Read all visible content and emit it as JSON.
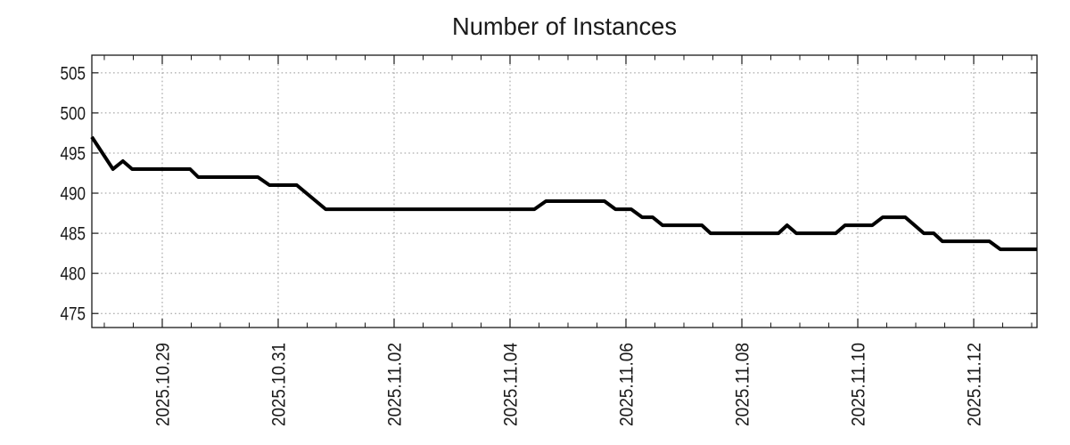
{
  "chart_data": {
    "type": "line",
    "title": "Number of Instances",
    "x_axis": {
      "unit": "days since 2025-10-29 00:00",
      "lim": [
        -1.215,
        15.092
      ],
      "major_ticks": [
        {
          "d": 0,
          "label": "2025.10.29"
        },
        {
          "d": 2,
          "label": "2025.10.31"
        },
        {
          "d": 4,
          "label": "2025.11.02"
        },
        {
          "d": 6,
          "label": "2025.11.04"
        },
        {
          "d": 8,
          "label": "2025.11.06"
        },
        {
          "d": 10,
          "label": "2025.11.08"
        },
        {
          "d": 12,
          "label": "2025.11.10"
        },
        {
          "d": 14,
          "label": "2025.11.12"
        }
      ],
      "minor_tick_step": 0.5,
      "grid": true
    },
    "y_axis": {
      "lim": [
        473.25,
        507.2
      ],
      "major_ticks": [
        475,
        480,
        485,
        490,
        495,
        500,
        505
      ],
      "grid": true
    },
    "series": [
      {
        "name": "instances",
        "color": "#000000",
        "points": [
          [
            -1.215,
            497
          ],
          [
            -0.85,
            493
          ],
          [
            -0.68,
            494
          ],
          [
            -0.52,
            493
          ],
          [
            0.48,
            493
          ],
          [
            0.62,
            492
          ],
          [
            1.65,
            492
          ],
          [
            1.85,
            491
          ],
          [
            2.32,
            491
          ],
          [
            2.82,
            488
          ],
          [
            6.42,
            488
          ],
          [
            6.62,
            489
          ],
          [
            7.63,
            489
          ],
          [
            7.82,
            488
          ],
          [
            8.09,
            488
          ],
          [
            8.28,
            487
          ],
          [
            8.46,
            487
          ],
          [
            8.63,
            486
          ],
          [
            9.31,
            486
          ],
          [
            9.46,
            485
          ],
          [
            10.63,
            485
          ],
          [
            10.78,
            486
          ],
          [
            10.94,
            485
          ],
          [
            11.62,
            485
          ],
          [
            11.78,
            486
          ],
          [
            12.25,
            486
          ],
          [
            12.43,
            487
          ],
          [
            12.82,
            487
          ],
          [
            13.14,
            485
          ],
          [
            13.31,
            485
          ],
          [
            13.46,
            484
          ],
          [
            14.27,
            484
          ],
          [
            14.46,
            483
          ],
          [
            15.092,
            483
          ]
        ]
      }
    ],
    "legend": null,
    "colors": {
      "line": "#000000",
      "grid": "#989898",
      "axis": "#1a1a1a",
      "text": "#1a1a1a",
      "background": "#ffffff"
    }
  }
}
